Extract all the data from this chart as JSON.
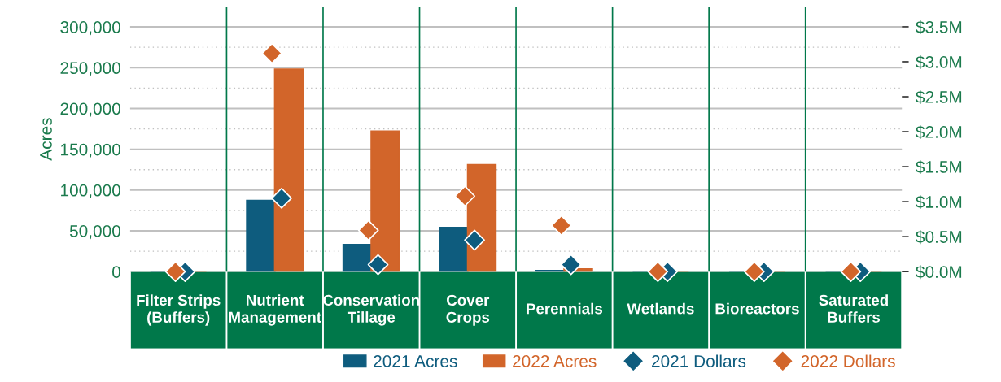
{
  "chart_data": {
    "type": "bar",
    "categories": [
      "Filter Strips\n(Buffers)",
      "Nutrient\nManagement",
      "Conservation\nTillage",
      "Cover\nCrops",
      "Perennials",
      "Wetlands",
      "Bioreactors",
      "Saturated\nBuffers"
    ],
    "series": [
      {
        "name": "2021 Acres",
        "type": "bar",
        "color": "#0e5c7e",
        "values": [
          0,
          87000,
          33000,
          54000,
          1000,
          0,
          0,
          0
        ]
      },
      {
        "name": "2022 Acres",
        "type": "bar",
        "color": "#d2652a",
        "values": [
          0,
          248000,
          172000,
          131000,
          3000,
          0,
          0,
          0
        ]
      },
      {
        "name": "2021 Dollars",
        "type": "scatter",
        "axis": "y2",
        "color": "#0e5c7e",
        "values": [
          0,
          1.05,
          0.1,
          0.45,
          0.1,
          0,
          0,
          0
        ]
      },
      {
        "name": "2022 Dollars",
        "type": "scatter",
        "axis": "y2",
        "color": "#d2652a",
        "values": [
          0,
          3.12,
          0.59,
          1.08,
          0.66,
          0,
          0,
          0
        ]
      }
    ],
    "ylabel": "Acres",
    "ylim": [
      0,
      325000
    ],
    "yticks": [
      {
        "value": 0,
        "label": "0"
      },
      {
        "value": 25000,
        "label": null
      },
      {
        "value": 50000,
        "label": "50,000"
      },
      {
        "value": 75000,
        "label": null
      },
      {
        "value": 100000,
        "label": "100,000"
      },
      {
        "value": 125000,
        "label": null
      },
      {
        "value": 150000,
        "label": "150,000"
      },
      {
        "value": 175000,
        "label": null
      },
      {
        "value": 200000,
        "label": "200,000"
      },
      {
        "value": 225000,
        "label": null
      },
      {
        "value": 250000,
        "label": "250,000"
      },
      {
        "value": 275000,
        "label": null
      },
      {
        "value": 300000,
        "label": "300,000"
      }
    ],
    "y2lim": [
      0,
      3.79
    ],
    "y2ticks": [
      {
        "value": 0,
        "label": "$0.0M"
      },
      {
        "value": 0.5,
        "label": "$0.5M"
      },
      {
        "value": 1.0,
        "label": "$1.0M"
      },
      {
        "value": 1.5,
        "label": "$1.5M"
      },
      {
        "value": 2.0,
        "label": "$2.0M"
      },
      {
        "value": 2.5,
        "label": "$2.5M"
      },
      {
        "value": 3.0,
        "label": "$3.0M"
      },
      {
        "value": 3.5,
        "label": "$3.5M"
      }
    ],
    "grid": "y",
    "marker": "diamond",
    "legend": "bottom right"
  }
}
